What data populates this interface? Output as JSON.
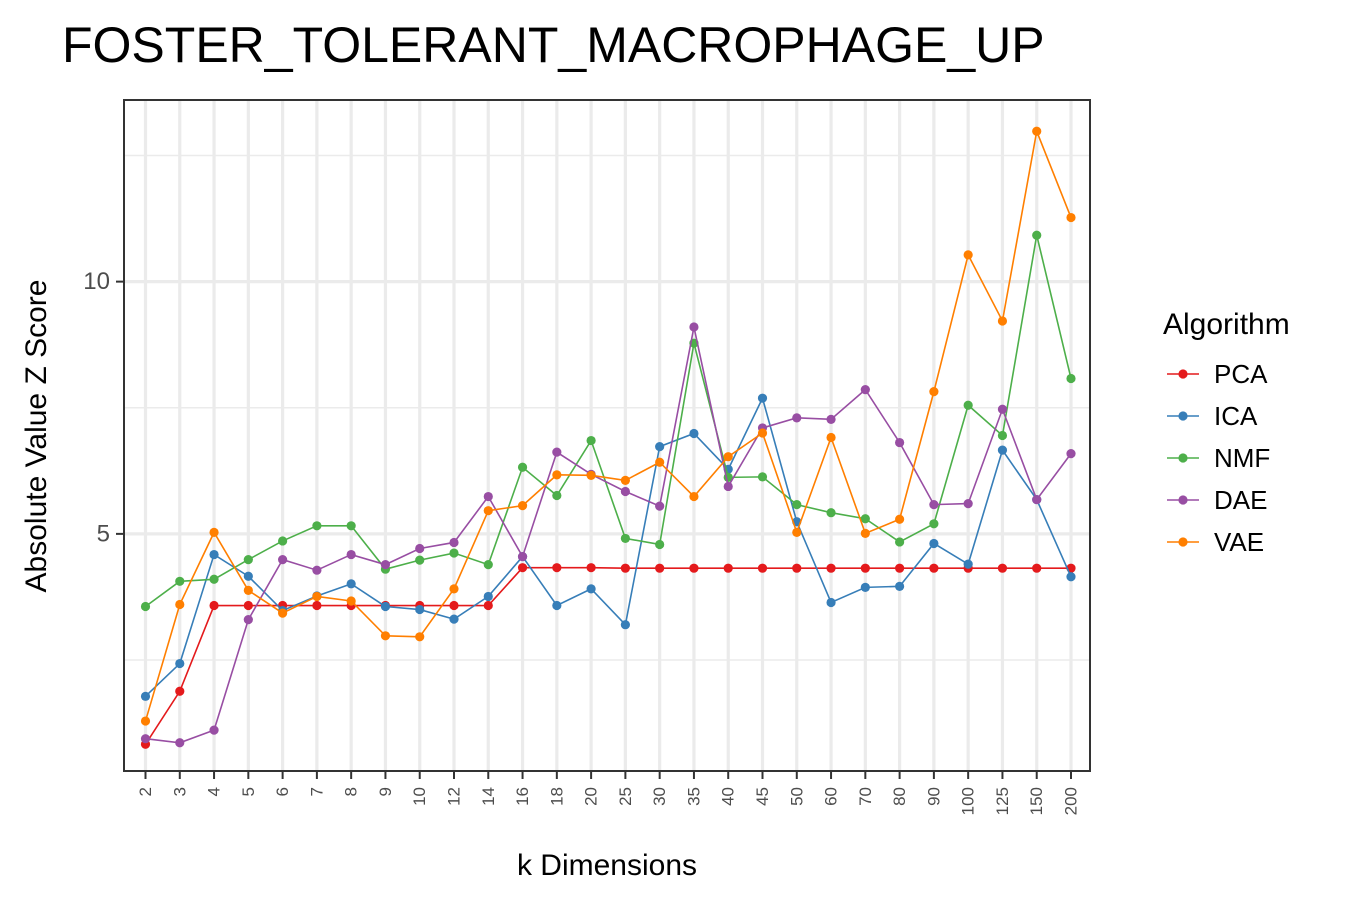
{
  "chart_data": {
    "type": "line",
    "title": "FOSTER_TOLERANT_MACROPHAGE_UP",
    "xlabel": "k Dimensions",
    "ylabel": "Absolute Value Z Score",
    "x": [
      "2",
      "3",
      "4",
      "5",
      "6",
      "7",
      "8",
      "9",
      "10",
      "12",
      "14",
      "16",
      "18",
      "20",
      "25",
      "30",
      "35",
      "40",
      "45",
      "50",
      "60",
      "70",
      "80",
      "90",
      "100",
      "125",
      "150",
      "200"
    ],
    "ylim": [
      0.3,
      13.6
    ],
    "yticks": [
      5,
      10
    ],
    "grid": true,
    "legend_title": "Algorithm",
    "legend_position": "right",
    "series": [
      {
        "name": "PCA",
        "color": "#E41A1C",
        "values": [
          0.83,
          1.88,
          3.58,
          3.58,
          3.58,
          3.58,
          3.58,
          3.58,
          3.58,
          3.58,
          3.58,
          4.33,
          4.33,
          4.33,
          4.32,
          4.32,
          4.32,
          4.32,
          4.32,
          4.32,
          4.32,
          4.32,
          4.32,
          4.32,
          4.32,
          4.32,
          4.32,
          4.32
        ]
      },
      {
        "name": "ICA",
        "color": "#377EB8",
        "values": [
          1.78,
          2.43,
          4.59,
          4.16,
          3.48,
          3.77,
          4.01,
          3.56,
          3.5,
          3.31,
          3.76,
          4.55,
          3.58,
          3.91,
          3.2,
          6.73,
          6.99,
          6.28,
          7.69,
          5.24,
          3.64,
          3.94,
          3.96,
          4.81,
          4.4,
          6.66,
          5.68,
          4.15
        ]
      },
      {
        "name": "NMF",
        "color": "#4DAF4A",
        "values": [
          3.56,
          4.06,
          4.1,
          4.49,
          4.86,
          5.16,
          5.16,
          4.3,
          4.48,
          4.62,
          4.39,
          6.32,
          5.76,
          6.85,
          4.91,
          4.79,
          8.78,
          6.12,
          6.13,
          5.58,
          5.42,
          5.3,
          4.84,
          5.2,
          7.55,
          6.95,
          10.92,
          8.08
        ]
      },
      {
        "name": "DAE",
        "color": "#984EA3",
        "values": [
          0.94,
          0.86,
          1.11,
          3.3,
          4.49,
          4.28,
          4.59,
          4.39,
          4.71,
          4.83,
          5.74,
          4.55,
          6.62,
          6.18,
          5.84,
          5.55,
          9.1,
          5.94,
          7.1,
          7.3,
          7.27,
          7.86,
          6.81,
          5.58,
          5.6,
          7.47,
          5.68,
          6.59
        ]
      },
      {
        "name": "VAE",
        "color": "#FF7F00",
        "values": [
          1.29,
          3.6,
          5.03,
          3.88,
          3.43,
          3.76,
          3.67,
          2.98,
          2.96,
          3.91,
          5.46,
          5.56,
          6.17,
          6.16,
          6.06,
          6.42,
          5.74,
          6.53,
          7.0,
          5.03,
          6.91,
          5.01,
          5.29,
          7.82,
          10.53,
          9.22,
          12.98,
          11.27
        ]
      }
    ]
  }
}
